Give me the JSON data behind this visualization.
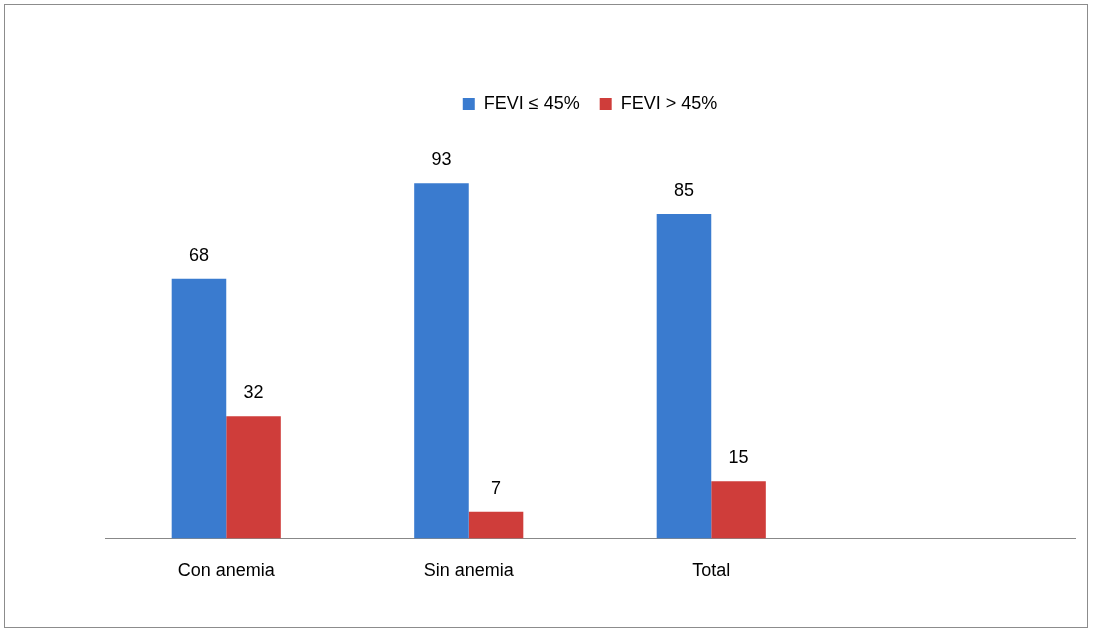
{
  "chart_data": {
    "type": "bar",
    "categories": [
      "Con anemia",
      "Sin anemia",
      "Total",
      null
    ],
    "series": [
      {
        "name": "FEVI ≤ 45%",
        "color": "#3a7bcf",
        "values": [
          68,
          93,
          85,
          null
        ]
      },
      {
        "name": "FEVI > 45%",
        "color": "#cf3d3a",
        "values": [
          32,
          7,
          15,
          null
        ]
      }
    ],
    "data_labels": true,
    "legend": "top",
    "grid": false
  }
}
